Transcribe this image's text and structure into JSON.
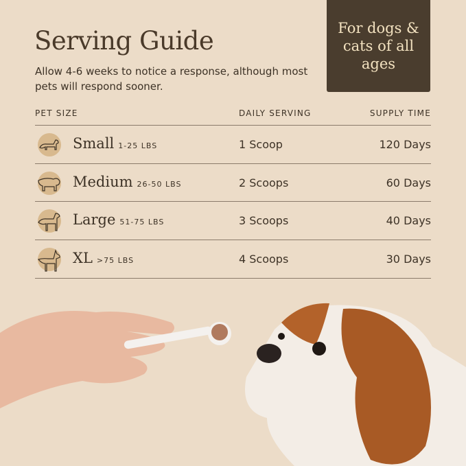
{
  "title": "Serving Guide",
  "subtitle": "Allow 4-6 weeks to notice a response, although most pets will respond sooner.",
  "badge": "For dogs & cats of all ages",
  "columns": {
    "size": "PET SIZE",
    "serving": "DAILY SERVING",
    "supply": "SUPPLY TIME"
  },
  "rows": [
    {
      "icon": "dachshund-icon",
      "size": "Small",
      "weight": "1-25 LBS",
      "serving": "1 Scoop",
      "supply": "120 Days"
    },
    {
      "icon": "bulldog-icon",
      "size": "Medium",
      "weight": "26-50 LBS",
      "serving": "2 Scoops",
      "supply": "60 Days"
    },
    {
      "icon": "retriever-icon",
      "size": "Large",
      "weight": "51-75 LBS",
      "serving": "3 Scoops",
      "supply": "40 Days"
    },
    {
      "icon": "doberman-icon",
      "size": "XL",
      "weight": ">75 LBS",
      "serving": "4 Scoops",
      "supply": "30 Days"
    }
  ],
  "colors": {
    "background": "#ecdcc8",
    "badge": "#4a3d2e",
    "badge_text": "#f3e2c0",
    "icon_circle": "#d8b98e"
  }
}
